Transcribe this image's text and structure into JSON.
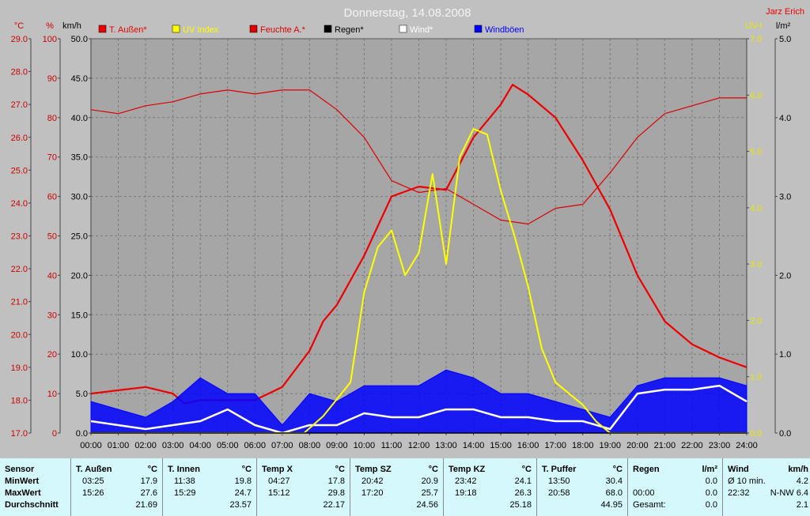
{
  "chart_data": {
    "type": "line",
    "title": "Donnerstag, 14.08.2008",
    "author": "Jarz Erich",
    "x_ticks": [
      "00:00",
      "01:00",
      "02:00",
      "03:00",
      "04:00",
      "05:00",
      "06:00",
      "07:00",
      "08:00",
      "09:00",
      "10:00",
      "11:00",
      "12:00",
      "13:00",
      "14:00",
      "15:00",
      "16:00",
      "17:00",
      "18:00",
      "19:00",
      "20:00",
      "21:00",
      "22:00",
      "23:00",
      "24:00"
    ],
    "xlim": [
      0,
      24
    ],
    "grid": true,
    "legend_position": "top",
    "axes": {
      "temp": {
        "unit": "°C",
        "lim": [
          17.0,
          29.0
        ],
        "ticks": [
          "17.0",
          "18.0",
          "19.0",
          "20.0",
          "21.0",
          "22.0",
          "23.0",
          "24.0",
          "25.0",
          "26.0",
          "27.0",
          "28.0",
          "29.0"
        ],
        "color": "#cc0000"
      },
      "humidity": {
        "unit": "%",
        "lim": [
          0,
          100
        ],
        "ticks": [
          "0",
          "10",
          "20",
          "30",
          "40",
          "50",
          "60",
          "70",
          "80",
          "90",
          "100"
        ],
        "color": "#cc0000"
      },
      "wind": {
        "unit": "km/h",
        "lim": [
          0.0,
          50.0
        ],
        "ticks": [
          "0.0",
          "5.0",
          "10.0",
          "15.0",
          "20.0",
          "25.0",
          "30.0",
          "35.0",
          "40.0",
          "45.0",
          "50.0"
        ],
        "color": "#000000"
      },
      "uv": {
        "unit": "UV-I",
        "lim": [
          0.0,
          7.0
        ],
        "ticks": [
          "0.0",
          "1.0",
          "2.0",
          "3.0",
          "4.0",
          "5.0",
          "6.0",
          "7.0"
        ],
        "color": "#e8e800"
      },
      "rain": {
        "unit": "l/m²",
        "lim": [
          0.0,
          5.0
        ],
        "ticks": [
          "0.0",
          "1.0",
          "2.0",
          "3.0",
          "4.0",
          "5.0"
        ],
        "color": "#000000"
      }
    },
    "series": [
      {
        "name": "T. Außen*",
        "axis": "temp",
        "color": "#ee0000",
        "points": [
          [
            0,
            18.2
          ],
          [
            1,
            18.3
          ],
          [
            2,
            18.4
          ],
          [
            3,
            18.2
          ],
          [
            3.42,
            17.9
          ],
          [
            4,
            18.0
          ],
          [
            5,
            18.0
          ],
          [
            6,
            18.0
          ],
          [
            7,
            18.4
          ],
          [
            8,
            19.5
          ],
          [
            8.5,
            20.4
          ],
          [
            9,
            20.9
          ],
          [
            10,
            22.4
          ],
          [
            11,
            24.2
          ],
          [
            12,
            24.5
          ],
          [
            13,
            24.4
          ],
          [
            14,
            26.0
          ],
          [
            15,
            27.0
          ],
          [
            15.43,
            27.6
          ],
          [
            16,
            27.3
          ],
          [
            17,
            26.6
          ],
          [
            18,
            25.3
          ],
          [
            19,
            23.8
          ],
          [
            20,
            21.8
          ],
          [
            21,
            20.4
          ],
          [
            22,
            19.7
          ],
          [
            23,
            19.3
          ],
          [
            24,
            19.0
          ]
        ]
      },
      {
        "name": "UV Index",
        "axis": "uv",
        "color": "#ffff00",
        "points": [
          [
            0,
            0
          ],
          [
            7.8,
            0
          ],
          [
            8.5,
            0.3
          ],
          [
            9,
            0.6
          ],
          [
            9.5,
            0.9
          ],
          [
            10,
            2.5
          ],
          [
            10.5,
            3.3
          ],
          [
            11,
            3.6
          ],
          [
            11.5,
            2.8
          ],
          [
            12,
            3.2
          ],
          [
            12.5,
            4.6
          ],
          [
            13,
            3.0
          ],
          [
            13.5,
            4.9
          ],
          [
            14,
            5.4
          ],
          [
            14.5,
            5.3
          ],
          [
            15,
            4.3
          ],
          [
            15.5,
            3.5
          ],
          [
            16,
            2.6
          ],
          [
            16.5,
            1.5
          ],
          [
            17,
            0.9
          ],
          [
            18,
            0.5
          ],
          [
            18.5,
            0.2
          ],
          [
            19,
            0
          ],
          [
            24,
            0
          ]
        ]
      },
      {
        "name": "Feuchte A.*",
        "axis": "humidity",
        "color": "#dd0000",
        "points": [
          [
            0,
            82
          ],
          [
            1,
            81
          ],
          [
            2,
            83
          ],
          [
            3,
            84
          ],
          [
            4,
            86
          ],
          [
            5,
            87
          ],
          [
            6,
            86
          ],
          [
            7,
            87
          ],
          [
            8,
            87
          ],
          [
            9,
            82
          ],
          [
            10,
            75
          ],
          [
            11,
            64
          ],
          [
            12,
            61
          ],
          [
            13,
            62
          ],
          [
            14,
            58
          ],
          [
            15,
            54
          ],
          [
            16,
            53
          ],
          [
            17,
            57
          ],
          [
            18,
            58
          ],
          [
            19,
            66
          ],
          [
            20,
            75
          ],
          [
            21,
            81
          ],
          [
            22,
            83
          ],
          [
            23,
            85
          ],
          [
            24,
            85
          ]
        ]
      },
      {
        "name": "Regen*",
        "axis": "rain",
        "color": "#000000",
        "points": [
          [
            0,
            0
          ],
          [
            24,
            0
          ]
        ]
      },
      {
        "name": "Wind*",
        "axis": "wind",
        "color": "#ffffff",
        "points": [
          [
            0,
            1.5
          ],
          [
            1,
            1.0
          ],
          [
            2,
            0.5
          ],
          [
            3,
            1.0
          ],
          [
            4,
            1.5
          ],
          [
            5,
            3.0
          ],
          [
            6,
            1.0
          ],
          [
            7,
            0.0
          ],
          [
            8,
            1.0
          ],
          [
            9,
            1.0
          ],
          [
            10,
            2.5
          ],
          [
            11,
            2.0
          ],
          [
            12,
            2.0
          ],
          [
            13,
            3.0
          ],
          [
            14,
            3.0
          ],
          [
            15,
            2.0
          ],
          [
            16,
            2.0
          ],
          [
            17,
            1.5
          ],
          [
            18,
            1.5
          ],
          [
            19,
            0.5
          ],
          [
            20,
            5.0
          ],
          [
            21,
            5.5
          ],
          [
            22,
            5.5
          ],
          [
            23,
            6.0
          ],
          [
            24,
            4.0
          ]
        ]
      },
      {
        "name": "Windböen",
        "axis": "wind",
        "color": "#0000ff",
        "points": [
          [
            0,
            4
          ],
          [
            1,
            3
          ],
          [
            2,
            2
          ],
          [
            3,
            4
          ],
          [
            4,
            7
          ],
          [
            5,
            5
          ],
          [
            6,
            5
          ],
          [
            7,
            1
          ],
          [
            8,
            5
          ],
          [
            9,
            4
          ],
          [
            10,
            6
          ],
          [
            11,
            6
          ],
          [
            12,
            6
          ],
          [
            13,
            8
          ],
          [
            14,
            7
          ],
          [
            15,
            5
          ],
          [
            16,
            5
          ],
          [
            17,
            4
          ],
          [
            18,
            3
          ],
          [
            19,
            2
          ],
          [
            20,
            6
          ],
          [
            21,
            7
          ],
          [
            22,
            7
          ],
          [
            23,
            7
          ],
          [
            24,
            6
          ]
        ]
      }
    ]
  },
  "stats": {
    "sensor_header": "Sensor",
    "row_labels": [
      "MinWert",
      "MaxWert",
      "Durchschnitt"
    ],
    "columns": [
      {
        "name": "T. Außen",
        "unit": "°C",
        "min_time": "03:25",
        "min": "17.9",
        "max_time": "15:26",
        "max": "27.6",
        "avg": "21.69"
      },
      {
        "name": "T. Innen",
        "unit": "°C",
        "min_time": "11:38",
        "min": "19.8",
        "max_time": "15:29",
        "max": "24.7",
        "avg": "23.57"
      },
      {
        "name": "Temp X",
        "unit": "°C",
        "min_time": "04:27",
        "min": "17.8",
        "max_time": "15:12",
        "max": "29.8",
        "avg": "22.17"
      },
      {
        "name": "Temp SZ",
        "unit": "°C",
        "min_time": "20:42",
        "min": "20.9",
        "max_time": "17:20",
        "max": "25.7",
        "avg": "24.56"
      },
      {
        "name": "Temp KZ",
        "unit": "°C",
        "min_time": "23:42",
        "min": "24.1",
        "max_time": "19:18",
        "max": "26.3",
        "avg": "25.18"
      },
      {
        "name": "T. Puffer",
        "unit": "°C",
        "min_time": "13:50",
        "min": "30.4",
        "max_time": "20:58",
        "max": "68.0",
        "avg": "44.95"
      }
    ],
    "rain": {
      "name": "Regen",
      "unit": "l/m²",
      "r1_label": "",
      "r1": "0.0",
      "r2_label": "00:00",
      "r2": "0.0",
      "r3_label": "Gesamt:",
      "r3": "0.0"
    },
    "wind": {
      "name": "Wind",
      "unit": "km/h",
      "r1_label": "Ø 10 min.",
      "r1": "4.2",
      "r2_time": "22:32",
      "r2": "N-NW 6.4",
      "r3": "2.1"
    }
  }
}
